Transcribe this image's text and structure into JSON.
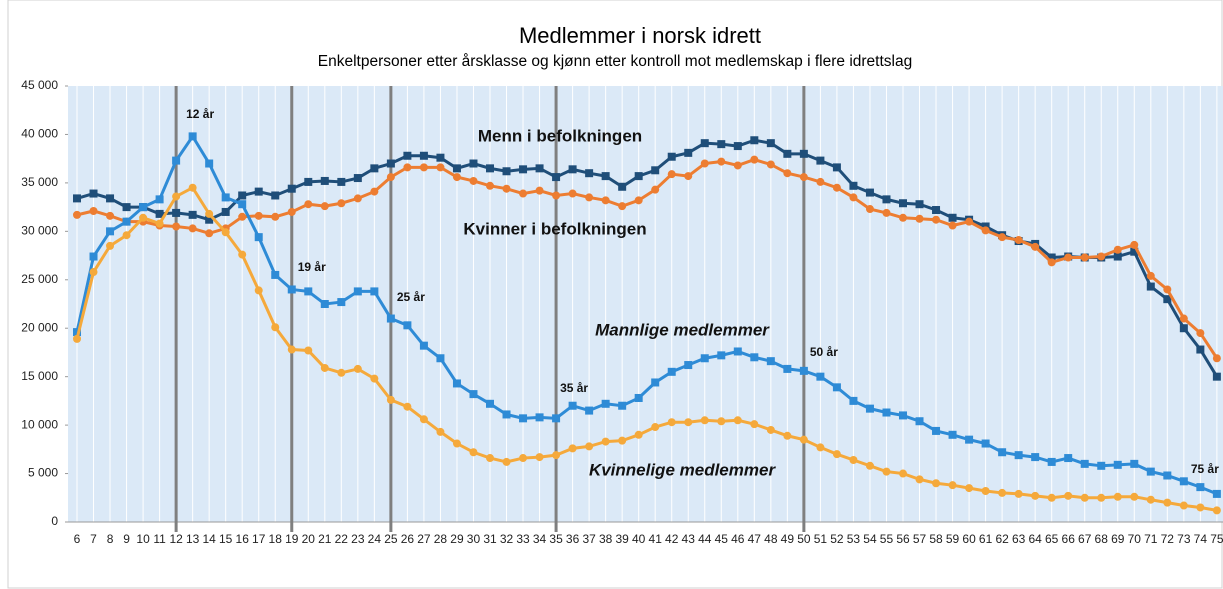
{
  "chart_data": {
    "type": "line",
    "title": "Medlemmer i norsk idrett",
    "subtitle": "Enkeltpersoner etter årsklasse og kjønn etter kontroll mot medlemskap i flere idrettslag",
    "categories": [
      6,
      7,
      8,
      9,
      10,
      11,
      12,
      13,
      14,
      15,
      16,
      17,
      18,
      19,
      20,
      21,
      22,
      23,
      24,
      25,
      26,
      27,
      28,
      29,
      30,
      31,
      32,
      33,
      34,
      35,
      36,
      37,
      38,
      39,
      40,
      41,
      42,
      43,
      44,
      45,
      46,
      47,
      48,
      49,
      50,
      51,
      52,
      53,
      54,
      55,
      56,
      57,
      58,
      59,
      60,
      61,
      62,
      63,
      64,
      65,
      66,
      67,
      68,
      69,
      70,
      71,
      72,
      73,
      74,
      75
    ],
    "ylim": [
      0,
      45000
    ],
    "yticks": [
      0,
      {
        "value": 5000,
        "label": "5 000"
      },
      {
        "value": 10000,
        "label": "10 000"
      },
      {
        "value": 15000,
        "label": "15 000"
      },
      {
        "value": 20000,
        "label": "20 000"
      },
      {
        "value": 25000,
        "label": "25 000"
      },
      {
        "value": 30000,
        "label": "30 000"
      },
      {
        "value": 35000,
        "label": "35 000"
      },
      {
        "value": 40000,
        "label": "40 000"
      },
      {
        "value": 45000,
        "label": "45 000"
      }
    ],
    "vlines": [
      12,
      19,
      25,
      35,
      50
    ],
    "annotations": [
      {
        "x": 12,
        "text": "12 år"
      },
      {
        "x": 19,
        "text": "19 år"
      },
      {
        "x": 25,
        "text": "25 år"
      },
      {
        "x": 35,
        "text": "35 år"
      },
      {
        "x": 50,
        "text": "50 år"
      },
      {
        "x": 75,
        "text": "75 år"
      }
    ],
    "series": [
      {
        "name": "Menn i befolkningen",
        "color": "#1f4e79",
        "marker": "square",
        "values": [
          33400,
          33900,
          33400,
          32500,
          32500,
          31800,
          31900,
          31700,
          31200,
          32000,
          33700,
          34100,
          33700,
          34400,
          35100,
          35200,
          35100,
          35500,
          36500,
          37000,
          37800,
          37800,
          37600,
          36500,
          37000,
          36500,
          36200,
          36400,
          36500,
          35600,
          36400,
          36000,
          35700,
          34600,
          35700,
          36300,
          37700,
          38100,
          39100,
          39000,
          38800,
          39400,
          39100,
          38000,
          38000,
          37300,
          36600,
          34700,
          34000,
          33300,
          32900,
          32800,
          32200,
          31400,
          31200,
          30500,
          29600,
          29000,
          28700,
          27300,
          27400,
          27300,
          27300,
          27400,
          27900,
          24300,
          23000,
          20000,
          17800,
          15000
        ]
      },
      {
        "name": "Kvinner i befolkningen",
        "color": "#ed7d31",
        "marker": "circle",
        "values": [
          31700,
          32100,
          31600,
          31000,
          31000,
          30600,
          30500,
          30300,
          29800,
          30300,
          31500,
          31600,
          31500,
          32000,
          32800,
          32600,
          32900,
          33400,
          34100,
          35600,
          36600,
          36600,
          36600,
          35600,
          35200,
          34700,
          34400,
          33900,
          34200,
          33700,
          33900,
          33500,
          33200,
          32600,
          33200,
          34300,
          35900,
          35700,
          37000,
          37200,
          36800,
          37400,
          36900,
          36000,
          35600,
          35100,
          34500,
          33500,
          32300,
          31900,
          31400,
          31300,
          31200,
          30600,
          31000,
          30100,
          29400,
          29100,
          28400,
          26800,
          27300,
          27300,
          27400,
          28100,
          28600,
          25400,
          24000,
          21000,
          19500,
          16900
        ]
      },
      {
        "name": "Mannlige medlemmer",
        "color": "#2e8bd6",
        "marker": "square",
        "values": [
          19600,
          27400,
          30000,
          31000,
          32500,
          33300,
          37300,
          39800,
          37000,
          33500,
          32800,
          29400,
          25500,
          24000,
          23800,
          22500,
          22700,
          23800,
          23800,
          21000,
          20300,
          18200,
          16900,
          14300,
          13200,
          12200,
          11100,
          10700,
          10800,
          10700,
          12000,
          11500,
          12200,
          12000,
          12800,
          14400,
          15500,
          16200,
          16900,
          17200,
          17600,
          17000,
          16600,
          15800,
          15600,
          15000,
          13900,
          12500,
          11700,
          11300,
          11000,
          10400,
          9400,
          9000,
          8500,
          8100,
          7200,
          6900,
          6700,
          6200,
          6600,
          6000,
          5800,
          5900,
          6000,
          5200,
          4800,
          4200,
          3600,
          2900
        ]
      },
      {
        "name": "Kvinnelige medlemmer",
        "color": "#f5a93b",
        "marker": "circle",
        "values": [
          18900,
          25800,
          28500,
          29600,
          31400,
          30800,
          33600,
          34500,
          31800,
          29900,
          27600,
          23900,
          20100,
          17800,
          17700,
          15900,
          15400,
          15800,
          14800,
          12600,
          11900,
          10600,
          9300,
          8100,
          7200,
          6600,
          6200,
          6600,
          6700,
          6900,
          7600,
          7800,
          8300,
          8400,
          9000,
          9800,
          10300,
          10300,
          10500,
          10400,
          10500,
          10100,
          9500,
          8900,
          8500,
          7700,
          7000,
          6400,
          5800,
          5200,
          5000,
          4400,
          4000,
          3800,
          3500,
          3200,
          3000,
          2900,
          2700,
          2500,
          2700,
          2500,
          2500,
          2600,
          2600,
          2300,
          2000,
          1700,
          1500,
          1200
        ]
      }
    ]
  }
}
